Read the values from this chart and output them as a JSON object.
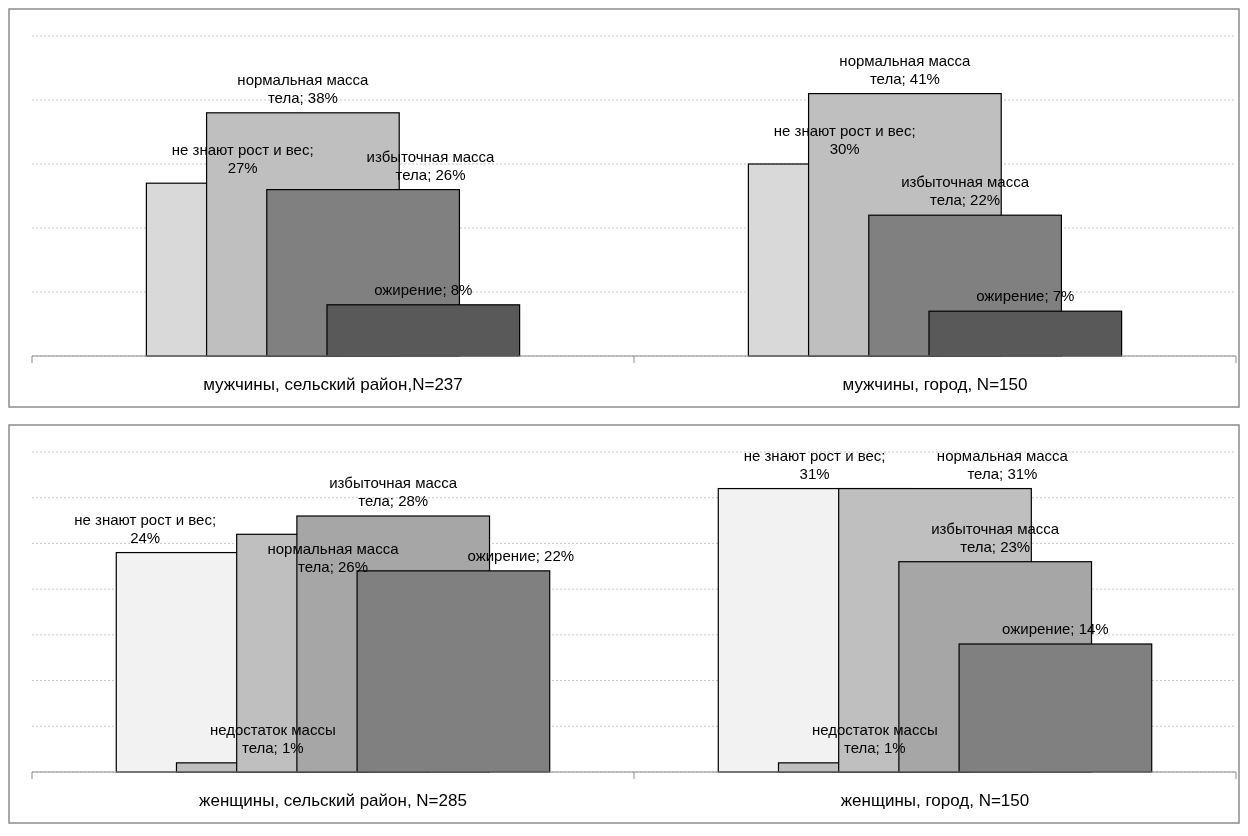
{
  "chart_data": [
    {
      "type": "bar",
      "categories": [
        "мужчины, сельский район,N=237",
        "мужчины, город, N=150"
      ],
      "ylim": [
        0,
        50
      ],
      "yticks": [
        0,
        10,
        20,
        30,
        40,
        50
      ],
      "tick_labels": "x",
      "grid": "y",
      "series": [
        {
          "color": "#d9d9d9",
          "values": [
            27,
            30
          ],
          "value_labels": [
            "не знают рост и вес; 27%",
            "не знают рост и вес; 30%"
          ]
        },
        {
          "color": "#bfbfbf",
          "values": [
            38,
            41
          ],
          "value_labels": [
            "нормальная масса тела; 38%",
            "нормальная масса тела; 41%"
          ]
        },
        {
          "color": "#808080",
          "values": [
            26,
            22
          ],
          "value_labels": [
            "избыточная масса тела; 26%",
            "избыточная масса тела; 22%"
          ]
        },
        {
          "color": "#595959",
          "values": [
            8,
            7
          ],
          "value_labels": [
            "ожирение; 8%",
            "ожирение; 7%"
          ]
        }
      ]
    },
    {
      "type": "bar",
      "categories": [
        "женщины, сельский район, N=285",
        "женщины, город, N=150"
      ],
      "ylim": [
        0,
        35
      ],
      "yticks": [
        0,
        5,
        10,
        15,
        20,
        25,
        30,
        35
      ],
      "tick_labels": "x",
      "grid": "y",
      "series": [
        {
          "color": "#f2f2f2",
          "values": [
            24,
            31
          ],
          "value_labels": [
            "не знают рост и вес; 24%",
            "не знают рост и вес; 31%"
          ]
        },
        {
          "color": "#bfbfbf",
          "values": [
            1,
            1
          ],
          "value_labels": [
            "недостаток массы тела; 1%",
            "недостаток массы тела; 1%"
          ]
        },
        {
          "color": "#bfbfbf",
          "values": [
            26,
            31
          ],
          "value_labels": [
            "нормальная масса тела; 26%",
            "нормальная масса тела; 31%"
          ]
        },
        {
          "color": "#a6a6a6",
          "values": [
            28,
            23
          ],
          "value_labels": [
            "избыточная масса тела; 28%",
            "избыточная масса тела; 23%"
          ]
        },
        {
          "color": "#808080",
          "values": [
            22,
            14
          ],
          "value_labels": [
            "ожирение; 22%",
            "ожирение; 14%"
          ]
        }
      ]
    }
  ]
}
